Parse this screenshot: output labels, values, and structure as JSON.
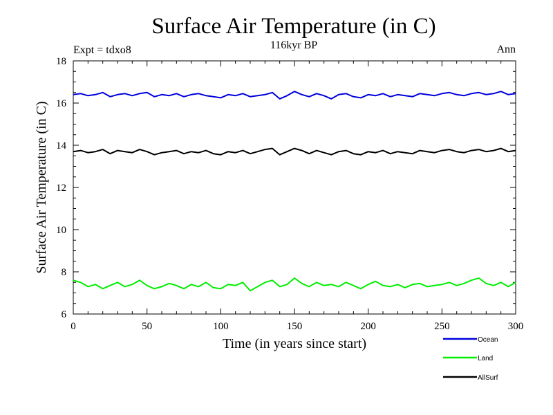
{
  "chart_data": {
    "type": "line",
    "title": "Surface Air Temperature (in C)",
    "subtitle": "116kyr BP",
    "left_note": "Expt = tdxo8",
    "right_note": "Ann",
    "xlabel": "Time (in years since start)",
    "ylabel": "Surface Air Temperature (in C)",
    "xlim": [
      0,
      300
    ],
    "ylim": [
      6,
      18
    ],
    "x_ticks": [
      0,
      50,
      100,
      150,
      200,
      250,
      300
    ],
    "y_ticks": [
      6,
      8,
      10,
      12,
      14,
      16,
      18
    ],
    "grid": false,
    "legend_position": "bottom-right",
    "series": [
      {
        "name": "Ocean",
        "color": "#0000dd",
        "x": [
          0,
          5,
          10,
          15,
          20,
          25,
          30,
          35,
          40,
          45,
          50,
          55,
          60,
          65,
          70,
          75,
          80,
          85,
          90,
          95,
          100,
          105,
          110,
          115,
          120,
          125,
          130,
          135,
          140,
          145,
          150,
          155,
          160,
          165,
          170,
          175,
          180,
          185,
          190,
          195,
          200,
          205,
          210,
          215,
          220,
          225,
          230,
          235,
          240,
          245,
          250,
          255,
          260,
          265,
          270,
          275,
          280,
          285,
          290,
          295,
          300
        ],
        "y": [
          16.4,
          16.45,
          16.35,
          16.4,
          16.5,
          16.3,
          16.4,
          16.45,
          16.35,
          16.45,
          16.5,
          16.3,
          16.4,
          16.35,
          16.45,
          16.3,
          16.4,
          16.45,
          16.35,
          16.3,
          16.25,
          16.4,
          16.35,
          16.45,
          16.3,
          16.35,
          16.4,
          16.5,
          16.2,
          16.35,
          16.55,
          16.4,
          16.3,
          16.45,
          16.35,
          16.2,
          16.4,
          16.45,
          16.3,
          16.25,
          16.4,
          16.35,
          16.45,
          16.3,
          16.4,
          16.35,
          16.3,
          16.45,
          16.4,
          16.35,
          16.45,
          16.5,
          16.4,
          16.35,
          16.45,
          16.5,
          16.4,
          16.45,
          16.55,
          16.4,
          16.45
        ]
      },
      {
        "name": "Land",
        "color": "#00ee00",
        "x": [
          0,
          5,
          10,
          15,
          20,
          25,
          30,
          35,
          40,
          45,
          50,
          55,
          60,
          65,
          70,
          75,
          80,
          85,
          90,
          95,
          100,
          105,
          110,
          115,
          120,
          125,
          130,
          135,
          140,
          145,
          150,
          155,
          160,
          165,
          170,
          175,
          180,
          185,
          190,
          195,
          200,
          205,
          210,
          215,
          220,
          225,
          230,
          235,
          240,
          245,
          250,
          255,
          260,
          265,
          270,
          275,
          280,
          285,
          290,
          295,
          300
        ],
        "y": [
          7.6,
          7.5,
          7.3,
          7.4,
          7.2,
          7.35,
          7.5,
          7.3,
          7.4,
          7.6,
          7.35,
          7.2,
          7.3,
          7.45,
          7.35,
          7.2,
          7.4,
          7.3,
          7.5,
          7.25,
          7.2,
          7.4,
          7.35,
          7.5,
          7.1,
          7.3,
          7.5,
          7.6,
          7.3,
          7.4,
          7.7,
          7.45,
          7.3,
          7.5,
          7.35,
          7.4,
          7.3,
          7.5,
          7.35,
          7.2,
          7.4,
          7.55,
          7.35,
          7.3,
          7.4,
          7.25,
          7.4,
          7.45,
          7.3,
          7.35,
          7.4,
          7.5,
          7.35,
          7.45,
          7.6,
          7.7,
          7.45,
          7.35,
          7.5,
          7.3,
          7.5
        ]
      },
      {
        "name": "AllSurf",
        "color": "#000000",
        "x": [
          0,
          5,
          10,
          15,
          20,
          25,
          30,
          35,
          40,
          45,
          50,
          55,
          60,
          65,
          70,
          75,
          80,
          85,
          90,
          95,
          100,
          105,
          110,
          115,
          120,
          125,
          130,
          135,
          140,
          145,
          150,
          155,
          160,
          165,
          170,
          175,
          180,
          185,
          190,
          195,
          200,
          205,
          210,
          215,
          220,
          225,
          230,
          235,
          240,
          245,
          250,
          255,
          260,
          265,
          270,
          275,
          280,
          285,
          290,
          295,
          300
        ],
        "y": [
          13.7,
          13.75,
          13.65,
          13.7,
          13.8,
          13.6,
          13.75,
          13.7,
          13.65,
          13.8,
          13.7,
          13.55,
          13.65,
          13.7,
          13.75,
          13.6,
          13.7,
          13.65,
          13.75,
          13.6,
          13.55,
          13.7,
          13.65,
          13.75,
          13.6,
          13.7,
          13.8,
          13.85,
          13.55,
          13.7,
          13.85,
          13.75,
          13.6,
          13.75,
          13.65,
          13.55,
          13.7,
          13.75,
          13.6,
          13.55,
          13.7,
          13.65,
          13.75,
          13.6,
          13.7,
          13.65,
          13.6,
          13.75,
          13.7,
          13.65,
          13.75,
          13.8,
          13.7,
          13.65,
          13.75,
          13.8,
          13.7,
          13.75,
          13.85,
          13.7,
          13.75
        ]
      }
    ]
  }
}
